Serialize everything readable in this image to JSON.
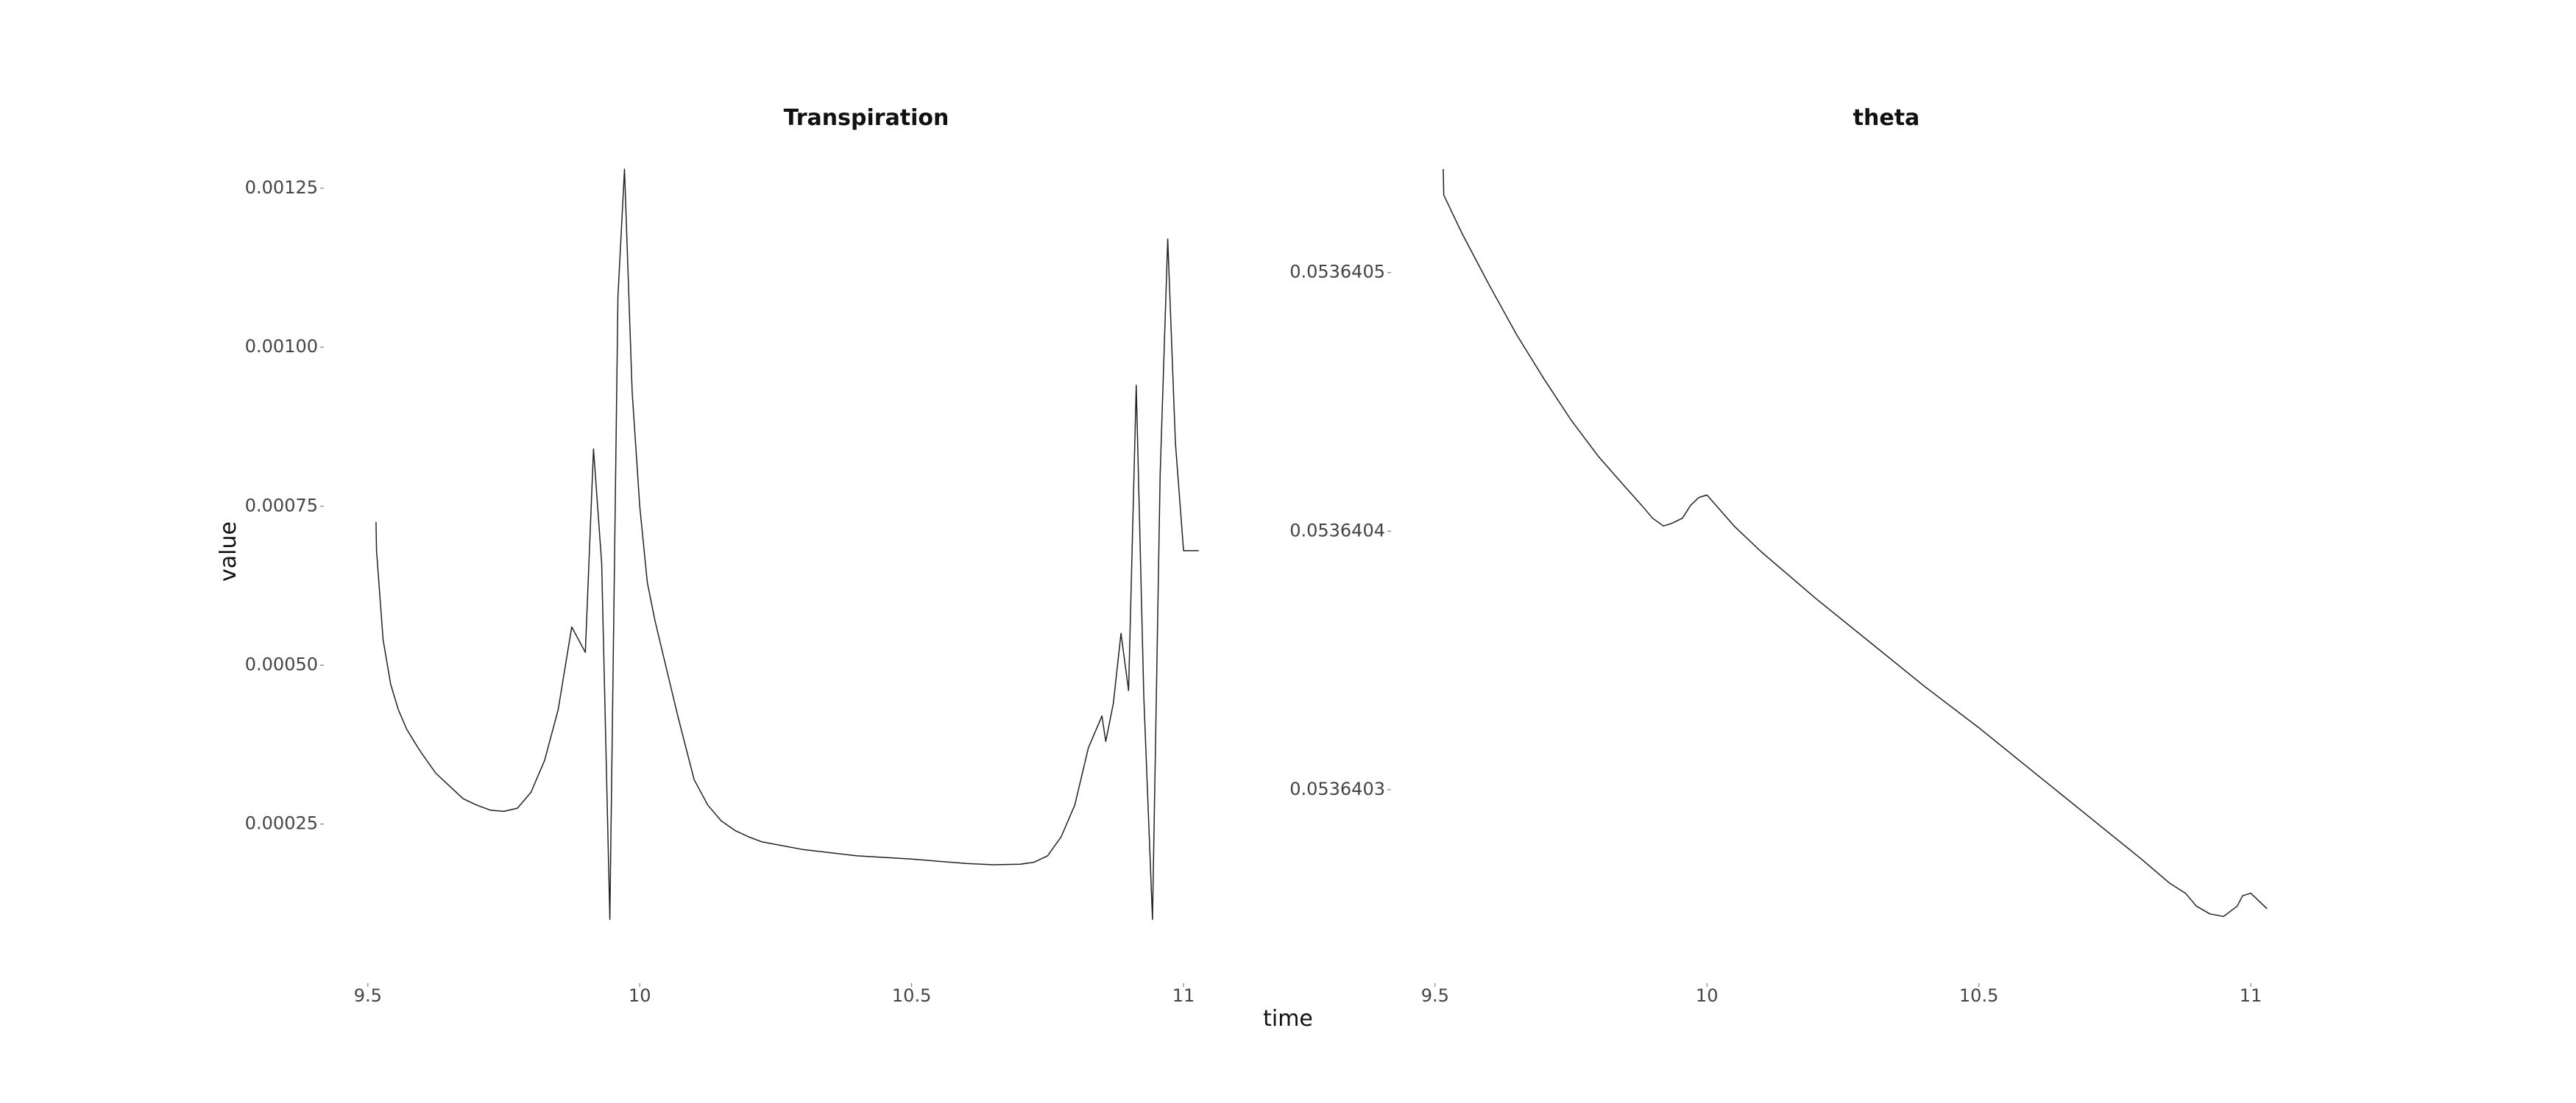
{
  "figure": {
    "xlabel": "time",
    "ylabel": "value"
  },
  "chart_data": [
    {
      "type": "line",
      "title": "Transpiration",
      "xlabel": "time",
      "ylabel": "value",
      "xlim": [
        9.48,
        11.05
      ],
      "ylim": [
        6e-05,
        0.00128
      ],
      "grid": false,
      "x_ticks": [
        9.5,
        10,
        10.5,
        11
      ],
      "x_tick_labels": [
        "9.5",
        "10",
        "10.5",
        "11"
      ],
      "y_ticks": [
        0.00025,
        0.0005,
        0.00075,
        0.001,
        0.00125
      ],
      "y_tick_labels": [
        "0.00025",
        "0.00050",
        "0.00075",
        "0.00100",
        "0.00125"
      ],
      "series": [
        {
          "name": "Transpiration",
          "x": [
            9.515,
            9.516,
            9.528,
            9.542,
            9.556,
            9.571,
            9.585,
            9.6,
            9.625,
            9.65,
            9.675,
            9.7,
            9.725,
            9.75,
            9.775,
            9.8,
            9.825,
            9.85,
            9.875,
            9.9,
            9.915,
            9.93,
            9.945,
            9.96,
            9.972,
            9.986,
            10.0,
            10.014,
            10.028,
            10.042,
            10.056,
            10.07,
            10.085,
            10.1,
            10.125,
            10.15,
            10.175,
            10.2,
            10.225,
            10.25,
            10.3,
            10.4,
            10.5,
            10.6,
            10.65,
            10.7,
            10.725,
            10.75,
            10.775,
            10.8,
            10.825,
            10.85,
            10.857,
            10.871,
            10.885,
            10.899,
            10.913,
            10.927,
            10.943,
            10.957,
            10.971,
            10.985,
            11.0,
            11.014,
            11.028
          ],
          "values": [
            0.000725,
            0.00068,
            0.00054,
            0.00047,
            0.00043,
            0.0004,
            0.00038,
            0.00036,
            0.00033,
            0.00031,
            0.00029,
            0.00028,
            0.000272,
            0.00027,
            0.000275,
            0.0003,
            0.00035,
            0.00043,
            0.00056,
            0.00052,
            0.00084,
            0.00066,
            0.0001,
            0.00108,
            0.00128,
            0.00093,
            0.00075,
            0.00063,
            0.00057,
            0.00052,
            0.00047,
            0.00042,
            0.00037,
            0.00032,
            0.00028,
            0.000255,
            0.00024,
            0.00023,
            0.000222,
            0.000218,
            0.00021,
            0.0002,
            0.000195,
            0.000188,
            0.000186,
            0.000187,
            0.00019,
            0.0002,
            0.00023,
            0.00028,
            0.00037,
            0.00042,
            0.00038,
            0.00044,
            0.00055,
            0.00046,
            0.00094,
            0.00045,
            0.0001,
            0.0008,
            0.00117,
            0.00085,
            0.00068,
            0.00068,
            0.00068
          ]
        }
      ]
    },
    {
      "type": "line",
      "title": "theta",
      "xlabel": "time",
      "ylabel": "value",
      "xlim": [
        9.48,
        11.05
      ],
      "ylim": [
        0.05364024,
        0.05364054
      ],
      "grid": false,
      "x_ticks": [
        9.5,
        10,
        10.5,
        11
      ],
      "x_tick_labels": [
        "9.5",
        "10",
        "10.5",
        "11"
      ],
      "y_ticks": [
        0.0536403,
        0.0536404,
        0.0536405
      ],
      "y_tick_labels": [
        "0.0536403",
        "0.0536404",
        "0.0536405"
      ],
      "series": [
        {
          "name": "theta",
          "x": [
            9.515,
            9.516,
            9.55,
            9.6,
            9.65,
            9.7,
            9.75,
            9.8,
            9.85,
            9.88,
            9.9,
            9.92,
            9.935,
            9.955,
            9.97,
            9.985,
            10.0,
            10.05,
            10.1,
            10.2,
            10.3,
            10.4,
            10.5,
            10.6,
            10.7,
            10.8,
            10.85,
            10.88,
            10.9,
            10.925,
            10.95,
            10.975,
            10.985,
            11.0,
            11.01,
            11.03
          ],
          "values": [
            0.05364054,
            0.05364053,
            0.053640515,
            0.053640495,
            0.053640476,
            0.053640459,
            0.053640443,
            0.053640429,
            0.053640417,
            0.05364041,
            0.053640405,
            0.053640402,
            0.053640403,
            0.053640405,
            0.05364041,
            0.053640413,
            0.053640414,
            0.053640402,
            0.053640392,
            0.053640374,
            0.053640357,
            0.05364034,
            0.053640324,
            0.053640307,
            0.05364029,
            0.053640273,
            0.053640264,
            0.05364026,
            0.053640255,
            0.053640252,
            0.053640251,
            0.053640255,
            0.053640259,
            0.05364026,
            0.053640258,
            0.053640254
          ]
        }
      ]
    }
  ]
}
